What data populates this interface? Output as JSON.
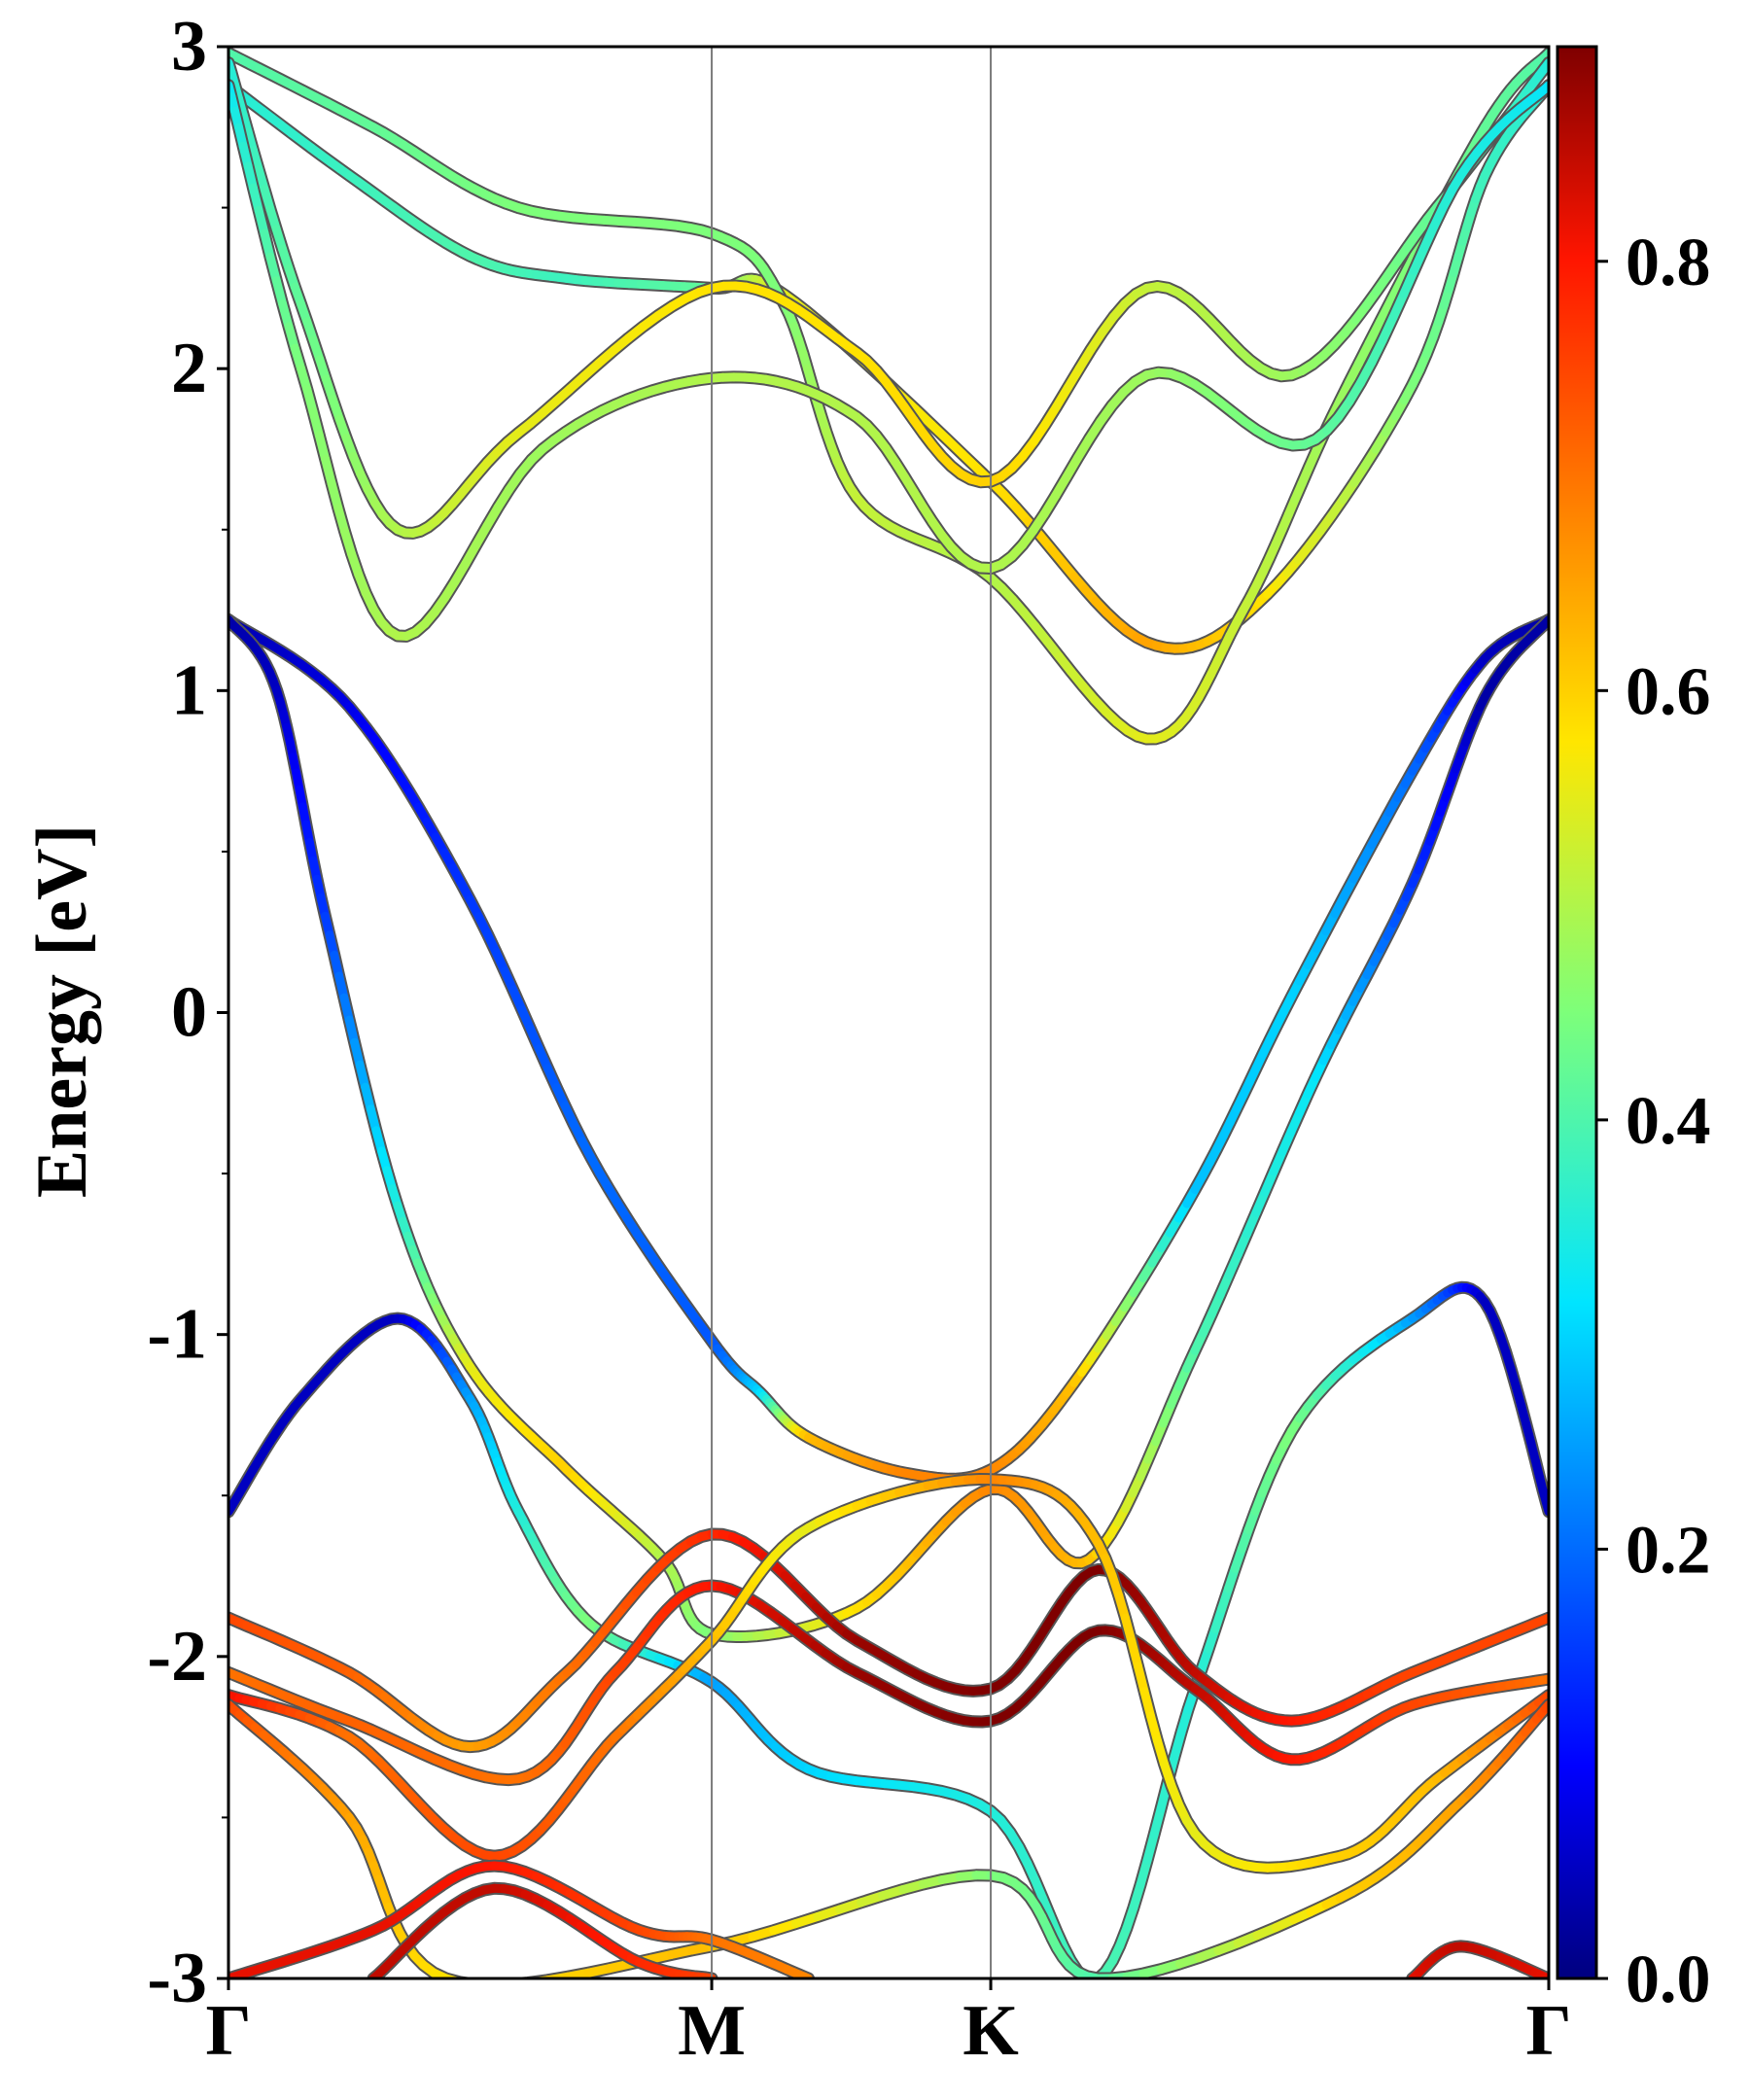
{
  "chart_data": {
    "type": "line",
    "subtype": "electronic-band-structure",
    "ylabel": "Energy [eV]",
    "ylim": [
      -3,
      3
    ],
    "yticks": [
      -3,
      -2,
      -1,
      0,
      1,
      2,
      3
    ],
    "x_path": [
      "Γ",
      "M",
      "K",
      "Γ"
    ],
    "x_positions": [
      0,
      1,
      1.5774,
      2.7321
    ],
    "xlim": [
      0,
      2.7321
    ],
    "colorbar": {
      "colormap": "jet",
      "range": [
        0.0,
        0.9
      ],
      "ticks": [
        "0.0",
        "0.2",
        "0.4",
        "0.6",
        "0.8"
      ]
    },
    "bands": [
      {
        "id": "b1",
        "points": [
          [
            0,
            1.22,
            0.03
          ],
          [
            0.25,
            0.95,
            0.08
          ],
          [
            0.5,
            0.35,
            0.15
          ],
          [
            0.75,
            -0.45,
            0.2
          ],
          [
            1,
            -1.02,
            0.18
          ],
          [
            1.1,
            -1.18,
            0.3
          ],
          [
            1.2,
            -1.32,
            0.62
          ],
          [
            1.4,
            -1.43,
            0.68
          ],
          [
            1.5774,
            -1.42,
            0.68
          ],
          [
            1.75,
            -1.15,
            0.62
          ],
          [
            2.0,
            -0.55,
            0.28
          ],
          [
            2.2,
            0.05,
            0.3
          ],
          [
            2.45,
            0.75,
            0.2
          ],
          [
            2.6,
            1.1,
            0.05
          ],
          [
            2.7321,
            1.22,
            0.03
          ]
        ]
      },
      {
        "id": "b2",
        "points": [
          [
            0,
            1.22,
            0.03
          ],
          [
            0.1,
            1.0,
            0.05
          ],
          [
            0.2,
            0.3,
            0.15
          ],
          [
            0.35,
            -0.6,
            0.35
          ],
          [
            0.5,
            -1.1,
            0.55
          ],
          [
            0.7,
            -1.42,
            0.6
          ],
          [
            0.9,
            -1.7,
            0.5
          ],
          [
            1,
            -1.93,
            0.45
          ],
          [
            1.3,
            -1.85,
            0.58
          ],
          [
            1.5774,
            -1.48,
            0.68
          ],
          [
            1.78,
            -1.7,
            0.62
          ],
          [
            2.0,
            -1.05,
            0.4
          ],
          [
            2.25,
            -0.2,
            0.32
          ],
          [
            2.45,
            0.4,
            0.15
          ],
          [
            2.6,
            0.98,
            0.03
          ],
          [
            2.7321,
            1.22,
            0.03
          ]
        ]
      },
      {
        "id": "b3",
        "points": [
          [
            0,
            -1.55,
            0.05
          ],
          [
            0.15,
            -1.2,
            0.05
          ],
          [
            0.35,
            -0.95,
            0.05
          ],
          [
            0.5,
            -1.2,
            0.25
          ],
          [
            0.6,
            -1.55,
            0.35
          ],
          [
            0.75,
            -1.9,
            0.45
          ],
          [
            1,
            -2.08,
            0.25
          ],
          [
            1.2,
            -2.35,
            0.3
          ],
          [
            1.5774,
            -2.48,
            0.35
          ],
          [
            1.8,
            -3.0,
            0.4
          ],
          [
            2.0,
            -2.1,
            0.35
          ],
          [
            2.2,
            -1.3,
            0.45
          ],
          [
            2.45,
            -0.95,
            0.25
          ],
          [
            2.6,
            -0.9,
            0.05
          ],
          [
            2.7321,
            -1.55,
            0.05
          ]
        ]
      },
      {
        "id": "b4",
        "points": [
          [
            0,
            -1.88,
            0.75
          ],
          [
            0.25,
            -2.05,
            0.72
          ],
          [
            0.5,
            -2.28,
            0.65
          ],
          [
            0.7,
            -2.05,
            0.7
          ],
          [
            1,
            -1.62,
            0.78
          ],
          [
            1.3,
            -1.95,
            0.88
          ],
          [
            1.5774,
            -2.1,
            0.9
          ],
          [
            1.8,
            -1.73,
            0.9
          ],
          [
            2.0,
            -2.05,
            0.85
          ],
          [
            2.2,
            -2.2,
            0.8
          ],
          [
            2.45,
            -2.05,
            0.75
          ],
          [
            2.7321,
            -1.88,
            0.75
          ]
        ]
      },
      {
        "id": "b5",
        "points": [
          [
            0,
            -2.05,
            0.7
          ],
          [
            0.25,
            -2.2,
            0.72
          ],
          [
            0.6,
            -2.38,
            0.7
          ],
          [
            0.8,
            -2.05,
            0.75
          ],
          [
            1,
            -1.78,
            0.8
          ],
          [
            1.3,
            -2.05,
            0.88
          ],
          [
            1.5774,
            -2.2,
            0.9
          ],
          [
            1.8,
            -1.92,
            0.9
          ],
          [
            2.0,
            -2.1,
            0.85
          ],
          [
            2.2,
            -2.32,
            0.8
          ],
          [
            2.45,
            -2.15,
            0.75
          ],
          [
            2.7321,
            -2.07,
            0.7
          ]
        ]
      },
      {
        "id": "b6",
        "points": [
          [
            0,
            -2.12,
            0.82
          ],
          [
            0.25,
            -2.25,
            0.7
          ],
          [
            0.55,
            -2.62,
            0.75
          ],
          [
            0.8,
            -2.25,
            0.7
          ],
          [
            1,
            -1.95,
            0.62
          ],
          [
            1.2,
            -1.6,
            0.55
          ],
          [
            1.5774,
            -1.45,
            0.68
          ],
          [
            1.8,
            -1.65,
            0.62
          ],
          [
            2.0,
            -2.55,
            0.55
          ],
          [
            2.3,
            -2.62,
            0.6
          ],
          [
            2.5,
            -2.38,
            0.62
          ],
          [
            2.7321,
            -2.12,
            0.75
          ]
        ]
      },
      {
        "id": "b7",
        "points": [
          [
            0,
            -2.15,
            0.75
          ],
          [
            0.25,
            -2.5,
            0.65
          ],
          [
            0.45,
            -3.0,
            0.58
          ],
          [
            1.0,
            -2.9,
            0.62
          ],
          [
            1.5774,
            -2.68,
            0.45
          ],
          [
            1.8,
            -3.0,
            0.4
          ],
          [
            2.3,
            -2.75,
            0.6
          ],
          [
            2.55,
            -2.45,
            0.65
          ],
          [
            2.7321,
            -2.15,
            0.75
          ]
        ]
      },
      {
        "id": "b8",
        "points": [
          [
            0,
            -3.0,
            0.82
          ],
          [
            0.3,
            -2.85,
            0.82
          ],
          [
            0.55,
            -2.65,
            0.8
          ],
          [
            0.85,
            -2.85,
            0.75
          ],
          [
            1.0,
            -2.88,
            0.7
          ],
          [
            1.2,
            -3.0,
            0.68
          ]
        ]
      },
      {
        "id": "b9",
        "points": [
          [
            0.3,
            -3.0,
            0.85
          ],
          [
            0.55,
            -2.72,
            0.85
          ],
          [
            0.85,
            -2.95,
            0.78
          ],
          [
            1.0,
            -3.0,
            0.75
          ]
        ]
      },
      {
        "id": "b10",
        "points": [
          [
            2.45,
            -3.0,
            0.82
          ],
          [
            2.55,
            -2.9,
            0.85
          ],
          [
            2.7321,
            -3.0,
            0.82
          ]
        ]
      },
      {
        "id": "c1",
        "points": [
          [
            0,
            2.88,
            0.35
          ],
          [
            0.25,
            2.6,
            0.38
          ],
          [
            0.5,
            2.35,
            0.4
          ],
          [
            0.7,
            2.28,
            0.38
          ],
          [
            1,
            2.25,
            0.42
          ],
          [
            1.15,
            2.23,
            0.55
          ],
          [
            1.5774,
            1.65,
            0.58
          ],
          [
            1.9,
            1.15,
            0.65
          ],
          [
            2.15,
            1.3,
            0.58
          ],
          [
            2.45,
            1.95,
            0.45
          ],
          [
            2.6,
            2.6,
            0.38
          ],
          [
            2.7321,
            2.88,
            0.35
          ]
        ]
      },
      {
        "id": "c2",
        "points": [
          [
            0,
            2.98,
            0.4
          ],
          [
            0.3,
            2.75,
            0.42
          ],
          [
            0.6,
            2.5,
            0.45
          ],
          [
            1,
            2.42,
            0.45
          ],
          [
            1.15,
            2.2,
            0.45
          ],
          [
            1.3,
            1.6,
            0.52
          ],
          [
            1.5774,
            1.35,
            0.5
          ],
          [
            1.9,
            0.85,
            0.55
          ],
          [
            2.1,
            1.25,
            0.52
          ],
          [
            2.3,
            1.9,
            0.48
          ],
          [
            2.6,
            2.75,
            0.42
          ],
          [
            2.7321,
            2.98,
            0.4
          ]
        ]
      },
      {
        "id": "c3",
        "points": [
          [
            0,
            2.95,
            0.35
          ],
          [
            0.15,
            2.2,
            0.42
          ],
          [
            0.35,
            1.5,
            0.5
          ],
          [
            0.6,
            1.8,
            0.55
          ],
          [
            1,
            2.25,
            0.58
          ],
          [
            1.3,
            2.05,
            0.58
          ],
          [
            1.5774,
            1.65,
            0.6
          ],
          [
            1.9,
            2.25,
            0.52
          ],
          [
            2.2,
            1.98,
            0.48
          ],
          [
            2.5,
            2.5,
            0.42
          ],
          [
            2.7321,
            2.95,
            0.35
          ]
        ]
      },
      {
        "id": "c4",
        "points": [
          [
            0,
            2.88,
            0.32
          ],
          [
            0.15,
            2.0,
            0.45
          ],
          [
            0.35,
            1.17,
            0.5
          ],
          [
            0.65,
            1.75,
            0.48
          ],
          [
            1,
            1.97,
            0.5
          ],
          [
            1.3,
            1.85,
            0.5
          ],
          [
            1.5774,
            1.38,
            0.5
          ],
          [
            1.9,
            1.98,
            0.48
          ],
          [
            2.25,
            1.78,
            0.42
          ],
          [
            2.55,
            2.6,
            0.35
          ],
          [
            2.7321,
            2.88,
            0.32
          ]
        ]
      }
    ]
  }
}
